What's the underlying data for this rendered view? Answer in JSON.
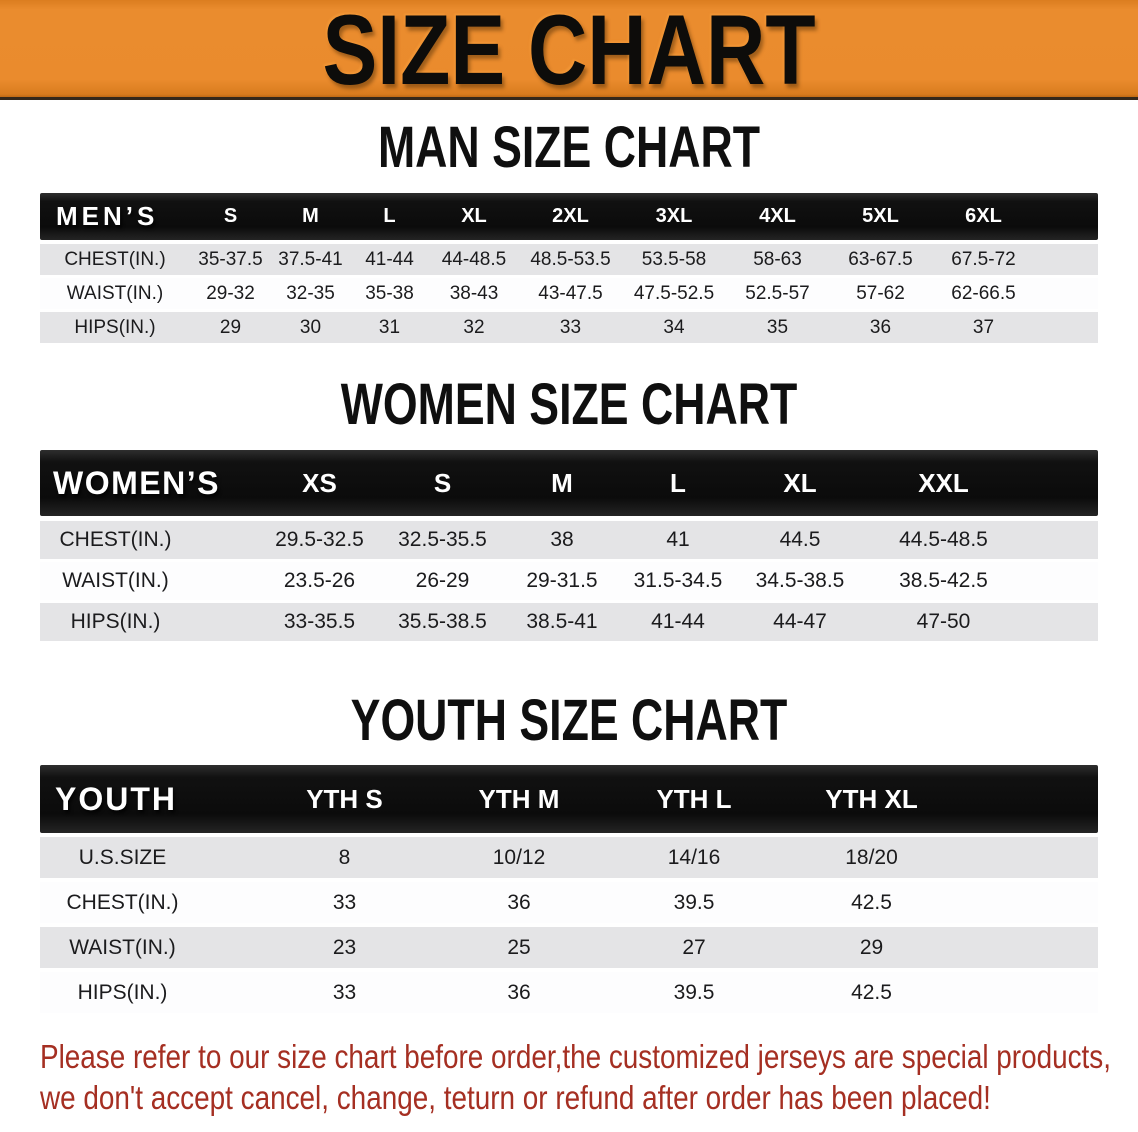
{
  "banner": {
    "title": "SIZE CHART",
    "bg_color": "#EA8C2E",
    "text_color": "#0D0C0A"
  },
  "sections": [
    {
      "id": "men",
      "heading": "MAN SIZE CHART",
      "table": {
        "label": "MEN’S",
        "sizes": [
          "S",
          "M",
          "L",
          "XL",
          "2XL",
          "3XL",
          "4XL",
          "5XL",
          "6XL"
        ],
        "rows": [
          {
            "label": "CHEST(IN.)",
            "values": [
              "35-37.5",
              "37.5-41",
              "41-44",
              "44-48.5",
              "48.5-53.5",
              "53.5-58",
              "58-63",
              "63-67.5",
              "67.5-72"
            ]
          },
          {
            "label": "WAIST(IN.)",
            "values": [
              "29-32",
              "32-35",
              "35-38",
              "38-43",
              "43-47.5",
              "47.5-52.5",
              "52.5-57",
              "57-62",
              "62-66.5"
            ]
          },
          {
            "label": "HIPS(IN.)",
            "values": [
              "29",
              "30",
              "31",
              "32",
              "33",
              "34",
              "35",
              "36",
              "37"
            ]
          }
        ]
      }
    },
    {
      "id": "women",
      "heading": "WOMEN SIZE CHART",
      "table": {
        "label": "WOMEN’S",
        "sizes": [
          "XS",
          "S",
          "M",
          "L",
          "XL",
          "XXL"
        ],
        "rows": [
          {
            "label": "CHEST(IN.)",
            "values": [
              "29.5-32.5",
              "32.5-35.5",
              "38",
              "41",
              "44.5",
              "44.5-48.5"
            ]
          },
          {
            "label": "WAIST(IN.)",
            "values": [
              "23.5-26",
              "26-29",
              "29-31.5",
              "31.5-34.5",
              "34.5-38.5",
              "38.5-42.5"
            ]
          },
          {
            "label": "HIPS(IN.)",
            "values": [
              "33-35.5",
              "35.5-38.5",
              "38.5-41",
              "41-44",
              "44-47",
              "47-50"
            ]
          }
        ]
      }
    },
    {
      "id": "youth",
      "heading": "YOUTH SIZE CHART",
      "table": {
        "label": "YOUTH",
        "sizes": [
          "YTH S",
          "YTH M",
          "YTH L",
          "YTH XL"
        ],
        "rows": [
          {
            "label": "U.S.SIZE",
            "values": [
              "8",
              "10/12",
              "14/16",
              "18/20"
            ]
          },
          {
            "label": "CHEST(IN.)",
            "values": [
              "33",
              "36",
              "39.5",
              "42.5"
            ]
          },
          {
            "label": "WAIST(IN.)",
            "values": [
              "23",
              "25",
              "27",
              "29"
            ]
          },
          {
            "label": "HIPS(IN.)",
            "values": [
              "33",
              "36",
              "39.5",
              "42.5"
            ]
          }
        ]
      }
    }
  ],
  "disclaimer": {
    "color": "#A52F22",
    "lines": [
      "Please refer to our size chart before order,the customized jerseys are special products,",
      "we don't accept cancel, change, teturn or refund after order has been placed!"
    ]
  }
}
